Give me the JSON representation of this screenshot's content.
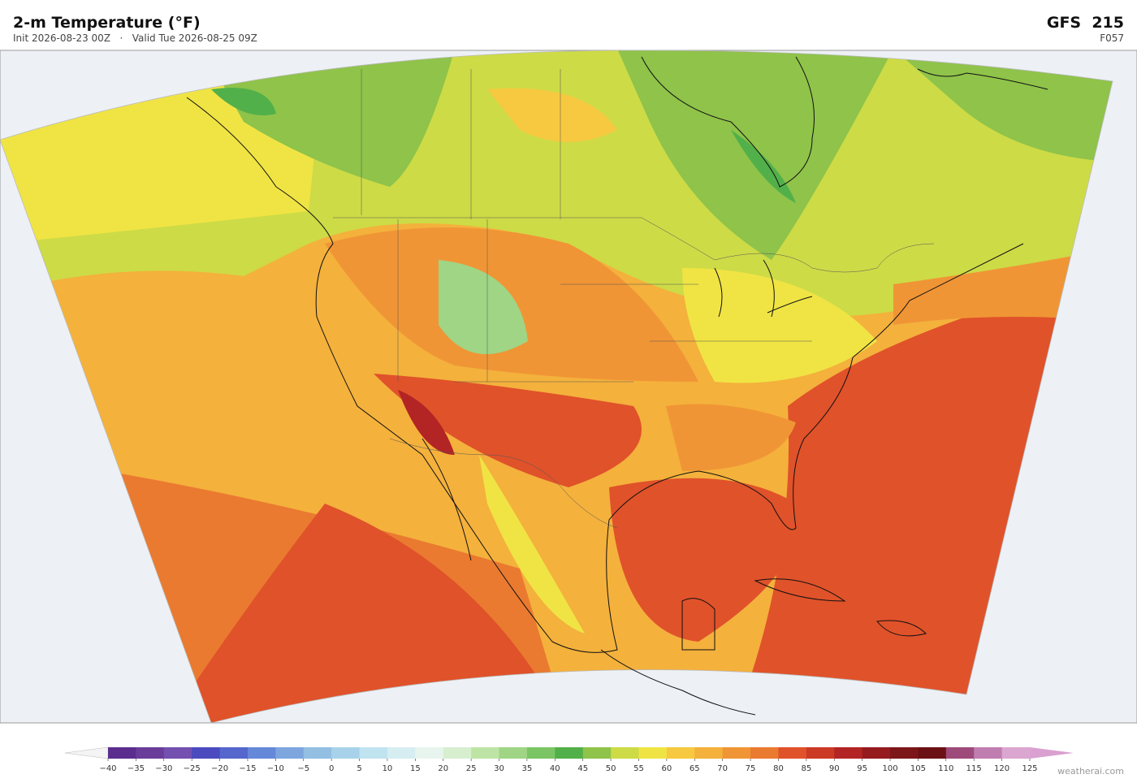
{
  "header": {
    "title": "2-m Temperature  (°F)",
    "subtitle": "Init 2026-08-23 00Z   ·   Valid Tue 2026-08-25 09Z",
    "model": "GFS  215",
    "forecast": "F057"
  },
  "colorbar": {
    "ticks": [
      {
        "value": -40,
        "label": "−40"
      },
      {
        "value": -35,
        "label": "−35"
      },
      {
        "value": -30,
        "label": "−30"
      },
      {
        "value": -25,
        "label": "−25"
      },
      {
        "value": -20,
        "label": "−20"
      },
      {
        "value": -15,
        "label": "−15"
      },
      {
        "value": -10,
        "label": "−10"
      },
      {
        "value": -5,
        "label": "−5"
      },
      0,
      5,
      10,
      15,
      20,
      25,
      30,
      35,
      40,
      45,
      50,
      55,
      60,
      65,
      70,
      75,
      80,
      85,
      90,
      95,
      100,
      105,
      110,
      115,
      120,
      125
    ],
    "colors": [
      "#5b2d8e",
      "#6a3d9a",
      "#7450b0",
      "#4b4bbf",
      "#5566cc",
      "#6688d8",
      "#7ea6de",
      "#93bfe3",
      "#a8d2ea",
      "#c0e3f0",
      "#d6eef2",
      "#e8f5ee",
      "#d7efcf",
      "#bde4a5",
      "#9fd585",
      "#7cc565",
      "#52b04a",
      "#8fc34a",
      "#cddb46",
      "#f0e444",
      "#f6c940",
      "#f4b13c",
      "#f09535",
      "#ea7a30",
      "#e0522a",
      "#cc3a26",
      "#b32424",
      "#951b1e",
      "#7d1618",
      "#6b1115",
      "#9e4a7a",
      "#c07db0",
      "#dba6cf"
    ],
    "under_color": "#f4f4f4",
    "over_color": "#d9a0d0"
  },
  "footer": {
    "watermark": "weatherai.com"
  }
}
